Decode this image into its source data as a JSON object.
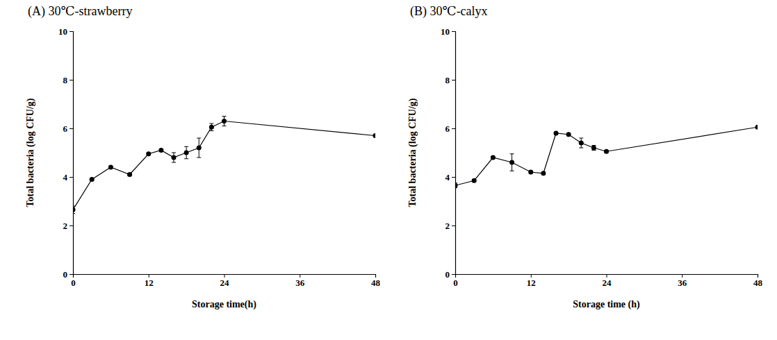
{
  "chart_data": [
    {
      "type": "line",
      "title": "(A) 30℃-strawberry",
      "x_label": "Storage time(h)",
      "y_label": "Total bacteria (log CFU/g)",
      "x": [
        0,
        3,
        6,
        9,
        12,
        14,
        16,
        18,
        20,
        22,
        24,
        48
      ],
      "series": [
        {
          "color": "#000000",
          "marker": "circle",
          "values": [
            2.65,
            3.9,
            4.4,
            4.1,
            4.95,
            5.1,
            4.8,
            5.0,
            5.2,
            6.05,
            6.3,
            5.7
          ],
          "errors": [
            0.15,
            0.05,
            0.05,
            0.05,
            0.05,
            0.05,
            0.2,
            0.25,
            0.4,
            0.15,
            0.2,
            0.05
          ]
        }
      ],
      "xlim": [
        0,
        48
      ],
      "xticks": [
        0,
        12,
        24,
        36,
        48
      ],
      "ylim": [
        0,
        10
      ],
      "yticks": [
        0,
        2,
        4,
        6,
        8,
        10
      ],
      "grid": false
    },
    {
      "type": "line",
      "title": "(B) 30℃-calyx",
      "x_label": "Storage time (h)",
      "y_label": "Total bacteria (log CFU/g)",
      "x": [
        0,
        3,
        6,
        9,
        12,
        14,
        16,
        18,
        20,
        22,
        24,
        48
      ],
      "series": [
        {
          "color": "#000000",
          "marker": "circle",
          "values": [
            3.65,
            3.85,
            4.8,
            4.6,
            4.2,
            4.15,
            5.8,
            5.75,
            5.4,
            5.2,
            5.05,
            6.05
          ],
          "errors": [
            0.1,
            0.05,
            0.05,
            0.35,
            0.05,
            0.05,
            0.05,
            0.05,
            0.2,
            0.1,
            0.05,
            0.05
          ]
        }
      ],
      "xlim": [
        0,
        48
      ],
      "xticks": [
        0,
        12,
        24,
        36,
        48
      ],
      "ylim": [
        0,
        10
      ],
      "yticks": [
        0,
        2,
        4,
        6,
        8,
        10
      ],
      "grid": false
    }
  ]
}
